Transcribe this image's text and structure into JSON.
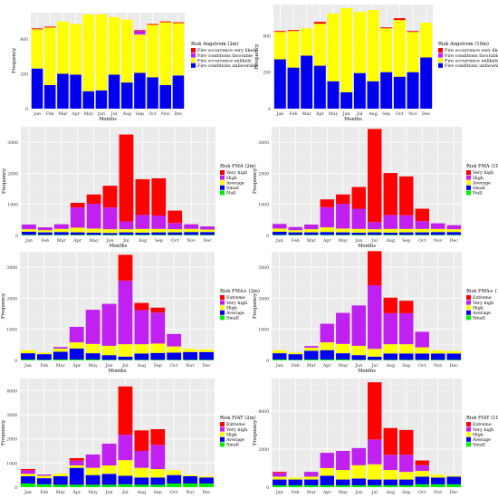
{
  "figure": {
    "months": [
      "Jan",
      "Feb",
      "Mar",
      "Apr",
      "May",
      "Jun",
      "Jul",
      "Aug",
      "Sep",
      "Oct",
      "Nov",
      "Dec"
    ],
    "xlabel": "Months",
    "ylabel": "Frequency"
  },
  "chart_data": [
    {
      "type": "bar",
      "stacked": true,
      "legend_title": "Risk Angstrom (2m)",
      "ylim": [
        0,
        550
      ],
      "yticks": [
        0,
        200,
        400
      ],
      "categories": [
        "Jan",
        "Feb",
        "Mar",
        "Apr",
        "May",
        "Jun",
        "Jul",
        "Aug",
        "Sep",
        "Oct",
        "Nov",
        "Dec"
      ],
      "series": [
        {
          "name": "Fire conditions unfavorable",
          "color": "#0000ee",
          "values": [
            230,
            135,
            200,
            195,
            100,
            105,
            195,
            150,
            205,
            180,
            135,
            190
          ]
        },
        {
          "name": "Fire occurrence unlikely",
          "color": "#ffff00",
          "values": [
            225,
            330,
            300,
            290,
            440,
            435,
            330,
            360,
            220,
            300,
            360,
            300
          ]
        },
        {
          "name": "Fire conditions favorable",
          "color": "#c020f0",
          "values": [
            0,
            0,
            0,
            0,
            0,
            0,
            0,
            0,
            20,
            0,
            0,
            0
          ]
        },
        {
          "name": "Fire occurrence very likely",
          "color": "#ff0000",
          "values": [
            5,
            5,
            0,
            0,
            0,
            0,
            0,
            0,
            5,
            5,
            5,
            5
          ]
        }
      ],
      "legend_swatches": [
        "#ff0000",
        "#c020f0",
        "#ffff00",
        "#0000ee"
      ],
      "legend_items": [
        "Fire occurrence very likely",
        "Fire conditions favorable",
        "Fire occurrence unlikely",
        "Fire conditions unfavorable"
      ]
    },
    {
      "type": "bar",
      "stacked": true,
      "legend_title": "Risk Angstrom (10m)",
      "ylim": [
        0,
        570
      ],
      "yticks": [
        0,
        200,
        400
      ],
      "categories": [
        "Jan",
        "Feb",
        "Mar",
        "Apr",
        "May",
        "Jun",
        "Jul",
        "Aug",
        "Sep",
        "Oct",
        "Nov",
        "Dec"
      ],
      "series": [
        {
          "name": "Fire conditions unfavorable",
          "color": "#0000ee",
          "values": [
            270,
            225,
            290,
            235,
            150,
            90,
            195,
            150,
            200,
            175,
            200,
            280
          ]
        },
        {
          "name": "Fire occurrence unlikely",
          "color": "#ffff00",
          "values": [
            150,
            200,
            150,
            230,
            370,
            460,
            335,
            390,
            240,
            310,
            220,
            190
          ]
        },
        {
          "name": "Fire conditions favorable",
          "color": "#c020f0",
          "values": [
            0,
            0,
            0,
            0,
            0,
            0,
            0,
            0,
            0,
            0,
            0,
            0
          ]
        },
        {
          "name": "Fire occurrence very likely",
          "color": "#ff0000",
          "values": [
            5,
            5,
            0,
            10,
            0,
            0,
            0,
            0,
            5,
            10,
            5,
            0
          ]
        }
      ],
      "legend_swatches": [
        "#ff0000",
        "#c020f0",
        "#ffff00",
        "#0000ee"
      ],
      "legend_items": [
        "Fire occurrence very likely",
        "Fire conditions favorable",
        "Fire occurrence unlikely",
        "Fire conditions unfavorable"
      ]
    },
    {
      "type": "bar",
      "stacked": true,
      "legend_title": "Risk FMA (2m)",
      "ylim": [
        0,
        3500
      ],
      "yticks": [
        0,
        1000,
        2000,
        3000
      ],
      "categories": [
        "Jan",
        "Feb",
        "Mar",
        "Apr",
        "May",
        "Jun",
        "Jul",
        "Aug",
        "Sep",
        "Oct",
        "Nov",
        "Dec"
      ],
      "series": [
        {
          "name": "Null",
          "color": "#00ee00",
          "values": [
            20,
            20,
            20,
            20,
            20,
            20,
            20,
            20,
            20,
            20,
            20,
            20
          ]
        },
        {
          "name": "Small",
          "color": "#0000ee",
          "values": [
            100,
            80,
            90,
            80,
            70,
            60,
            80,
            70,
            80,
            80,
            90,
            90
          ]
        },
        {
          "name": "Average",
          "color": "#ffff00",
          "values": [
            80,
            70,
            100,
            150,
            130,
            120,
            100,
            120,
            110,
            100,
            100,
            80
          ]
        },
        {
          "name": "High",
          "color": "#c020f0",
          "values": [
            150,
            90,
            150,
            650,
            800,
            700,
            250,
            450,
            430,
            200,
            150,
            100
          ]
        },
        {
          "name": "Very high",
          "color": "#ff0000",
          "values": [
            0,
            0,
            0,
            150,
            300,
            700,
            2800,
            1150,
            1200,
            400,
            0,
            0
          ]
        }
      ],
      "legend_swatches": [
        "#ff0000",
        "#c020f0",
        "#ffff00",
        "#0000ee",
        "#00ee00"
      ],
      "legend_items": [
        "Very high",
        "High",
        "Average",
        "Small",
        "Null"
      ]
    },
    {
      "type": "bar",
      "stacked": true,
      "legend_title": "Risk FMA (10m)",
      "ylim": [
        0,
        3500
      ],
      "yticks": [
        0,
        1000,
        2000,
        3000
      ],
      "categories": [
        "Jan",
        "Feb",
        "Mar",
        "Apr",
        "May",
        "Jun",
        "Jul",
        "Aug",
        "Sep",
        "Oct",
        "Nov",
        "Dec"
      ],
      "series": [
        {
          "name": "Null",
          "color": "#00ee00",
          "values": [
            20,
            20,
            20,
            20,
            20,
            20,
            20,
            20,
            20,
            20,
            20,
            20
          ]
        },
        {
          "name": "Small",
          "color": "#0000ee",
          "values": [
            100,
            80,
            80,
            90,
            80,
            70,
            80,
            70,
            80,
            80,
            90,
            90
          ]
        },
        {
          "name": "Average",
          "color": "#ffff00",
          "values": [
            100,
            70,
            100,
            150,
            120,
            120,
            100,
            120,
            110,
            110,
            100,
            90
          ]
        },
        {
          "name": "High",
          "color": "#c020f0",
          "values": [
            150,
            100,
            150,
            650,
            800,
            650,
            230,
            450,
            440,
            250,
            180,
            130
          ]
        },
        {
          "name": "Very high",
          "color": "#ff0000",
          "values": [
            0,
            0,
            0,
            250,
            300,
            700,
            3000,
            1350,
            1250,
            400,
            0,
            0
          ]
        }
      ],
      "legend_swatches": [
        "#ff0000",
        "#c020f0",
        "#ffff00",
        "#0000ee",
        "#00ee00"
      ],
      "legend_items": [
        "Very high",
        "High",
        "Average",
        "Small",
        "Null"
      ]
    },
    {
      "type": "bar",
      "stacked": true,
      "legend_title": "Risk FMA+ (2m)",
      "ylim": [
        0,
        3500
      ],
      "yticks": [
        0,
        1000,
        2000,
        3000
      ],
      "categories": [
        "Jan",
        "Feb",
        "Mar",
        "Apr",
        "May",
        "Jun",
        "Jul",
        "Aug",
        "Sep",
        "Oct",
        "Nov",
        "Dec"
      ],
      "series": [
        {
          "name": "Small",
          "color": "#00ee00",
          "values": [
            30,
            20,
            30,
            30,
            30,
            20,
            20,
            20,
            20,
            20,
            20,
            20
          ]
        },
        {
          "name": "Average",
          "color": "#0000ee",
          "values": [
            200,
            180,
            250,
            350,
            200,
            150,
            100,
            200,
            220,
            230,
            250,
            250
          ]
        },
        {
          "name": "High",
          "color": "#ffff00",
          "values": [
            100,
            50,
            100,
            200,
            300,
            300,
            400,
            300,
            300,
            200,
            100,
            80
          ]
        },
        {
          "name": "Very high",
          "color": "#c020f0",
          "values": [
            0,
            0,
            50,
            500,
            1100,
            1350,
            2050,
            1100,
            1000,
            400,
            0,
            0
          ]
        },
        {
          "name": "Extreme",
          "color": "#ff0000",
          "values": [
            0,
            0,
            0,
            0,
            0,
            0,
            830,
            230,
            160,
            0,
            0,
            0
          ]
        }
      ],
      "legend_swatches": [
        "#ff0000",
        "#c020f0",
        "#ffff00",
        "#0000ee",
        "#00ee00"
      ],
      "legend_items": [
        "Extreme",
        "Very high",
        "High",
        "Average",
        "Small"
      ]
    },
    {
      "type": "bar",
      "stacked": true,
      "legend_title": "Risk FMA+ (10m)",
      "ylim": [
        0,
        3500
      ],
      "yticks": [
        0,
        1000,
        2000,
        3000
      ],
      "categories": [
        "Jan",
        "Feb",
        "Mar",
        "Apr",
        "May",
        "Jun",
        "Jul",
        "Aug",
        "Sep",
        "Oct",
        "Nov",
        "Dec"
      ],
      "series": [
        {
          "name": "Small",
          "color": "#00ee00",
          "values": [
            30,
            20,
            30,
            30,
            30,
            20,
            20,
            20,
            20,
            20,
            20,
            20
          ]
        },
        {
          "name": "Average",
          "color": "#0000ee",
          "values": [
            200,
            180,
            280,
            300,
            200,
            150,
            100,
            200,
            200,
            200,
            200,
            200
          ]
        },
        {
          "name": "High",
          "color": "#ffff00",
          "values": [
            100,
            50,
            100,
            250,
            300,
            300,
            250,
            300,
            300,
            200,
            100,
            80
          ]
        },
        {
          "name": "Very high",
          "color": "#c020f0",
          "values": [
            0,
            0,
            50,
            600,
            1000,
            1300,
            2050,
            1000,
            1000,
            500,
            0,
            0
          ]
        },
        {
          "name": "Extreme",
          "color": "#ff0000",
          "values": [
            0,
            0,
            0,
            0,
            0,
            0,
            1100,
            500,
            400,
            0,
            0,
            0
          ]
        }
      ],
      "legend_swatches": [
        "#ff0000",
        "#c020f0",
        "#ffff00",
        "#0000ee",
        "#00ee00"
      ],
      "legend_items": [
        "Extreme",
        "Very high",
        "High",
        "Average",
        "Small"
      ]
    },
    {
      "type": "bar",
      "stacked": true,
      "legend_title": "Risk FIAT (2m)",
      "ylim": [
        0,
        4500
      ],
      "yticks": [
        0,
        1000,
        2000,
        3000,
        4000
      ],
      "categories": [
        "Jan",
        "Feb",
        "Mar",
        "Apr",
        "May",
        "Jun",
        "Jul",
        "Aug",
        "Sep",
        "Oct",
        "Nov",
        "Dec"
      ],
      "series": [
        {
          "name": "Small",
          "color": "#00ee00",
          "values": [
            150,
            120,
            100,
            100,
            100,
            100,
            120,
            100,
            100,
            150,
            150,
            150
          ]
        },
        {
          "name": "Average",
          "color": "#0000ee",
          "values": [
            300,
            250,
            350,
            700,
            400,
            450,
            350,
            300,
            300,
            350,
            300,
            250
          ]
        },
        {
          "name": "High",
          "color": "#ffff00",
          "values": [
            100,
            100,
            100,
            100,
            300,
            350,
            650,
            400,
            350,
            200,
            50,
            50
          ]
        },
        {
          "name": "Very high",
          "color": "#c020f0",
          "values": [
            150,
            50,
            0,
            200,
            550,
            900,
            1050,
            700,
            1000,
            0,
            0,
            0
          ]
        },
        {
          "name": "Extreme",
          "color": "#ff0000",
          "values": [
            50,
            0,
            0,
            100,
            0,
            0,
            2000,
            850,
            650,
            0,
            0,
            0
          ]
        }
      ],
      "legend_swatches": [
        "#ff0000",
        "#c020f0",
        "#ffff00",
        "#0000ee",
        "#00ee00"
      ],
      "legend_items": [
        "Extreme",
        "Very high",
        "High",
        "Average",
        "Small"
      ]
    },
    {
      "type": "bar",
      "stacked": true,
      "legend_title": "Risk FIAT (10m)",
      "ylim": [
        0,
        5700
      ],
      "yticks": [
        0,
        2000,
        4000
      ],
      "categories": [
        "Jan",
        "Feb",
        "Mar",
        "Apr",
        "May",
        "Jun",
        "Jul",
        "Aug",
        "Sep",
        "Oct",
        "Nov",
        "Dec"
      ],
      "series": [
        {
          "name": "Small",
          "color": "#00ee00",
          "values": [
            100,
            100,
            100,
            100,
            100,
            100,
            100,
            100,
            100,
            150,
            150,
            150
          ]
        },
        {
          "name": "Average",
          "color": "#0000ee",
          "values": [
            300,
            300,
            300,
            500,
            300,
            350,
            300,
            300,
            300,
            400,
            350,
            400
          ]
        },
        {
          "name": "High",
          "color": "#ffff00",
          "values": [
            150,
            100,
            150,
            400,
            500,
            700,
            800,
            500,
            400,
            300,
            150,
            50
          ]
        },
        {
          "name": "Very high",
          "color": "#c020f0",
          "values": [
            200,
            0,
            250,
            800,
            1000,
            900,
            1300,
            800,
            900,
            300,
            0,
            0
          ]
        },
        {
          "name": "Extreme",
          "color": "#ff0000",
          "values": [
            50,
            0,
            0,
            0,
            0,
            0,
            3000,
            1400,
            1300,
            250,
            0,
            0
          ]
        }
      ],
      "legend_swatches": [
        "#ff0000",
        "#c020f0",
        "#ffff00",
        "#0000ee",
        "#00ee00"
      ],
      "legend_items": [
        "Extreme",
        "Very high",
        "High",
        "Average",
        "Small"
      ]
    }
  ]
}
